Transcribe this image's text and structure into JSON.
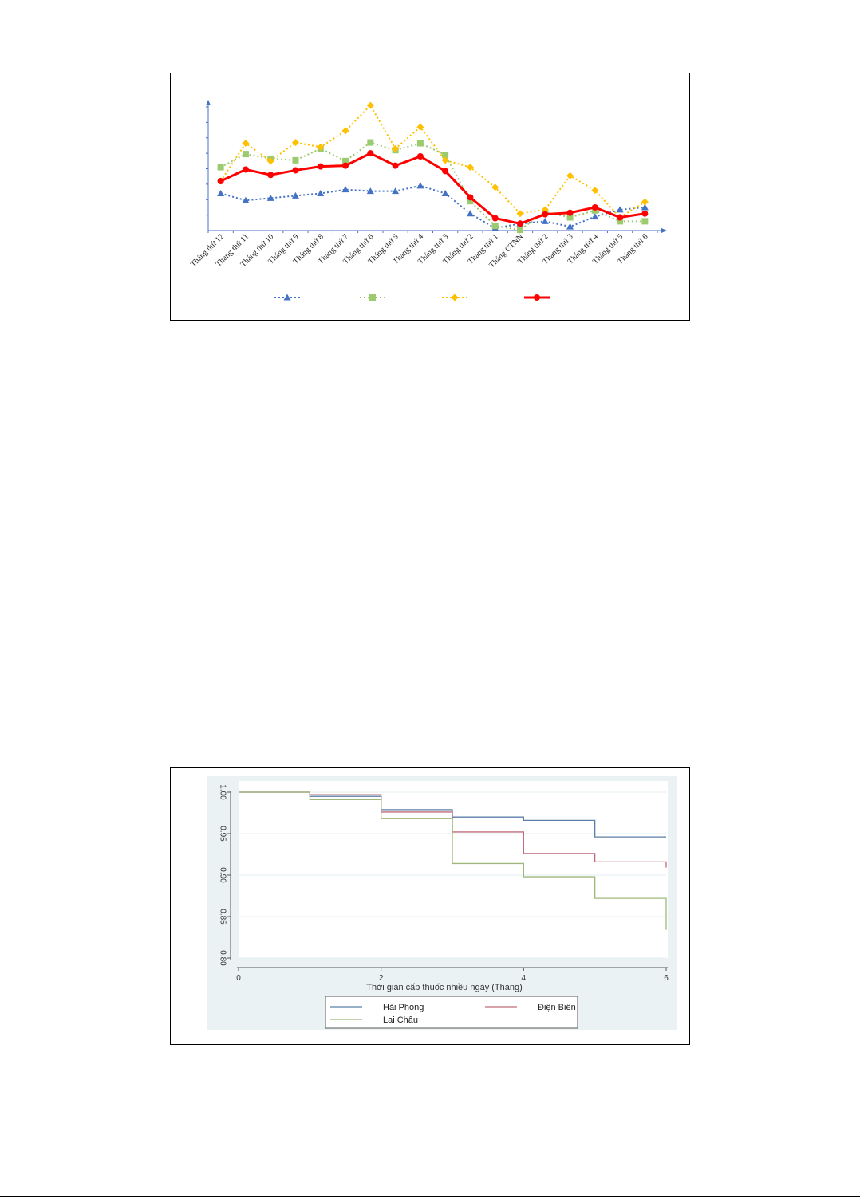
{
  "chart_data": [
    {
      "type": "line",
      "title": "",
      "xlabel": "",
      "ylabel": "",
      "categories": [
        "Tháng thứ 12",
        "Tháng thứ 11",
        "Tháng thứ 10",
        "Tháng thứ 9",
        "Tháng thứ 8",
        "Tháng thứ 7",
        "Tháng thứ 6",
        "Tháng thứ 5",
        "Tháng thứ 4",
        "Tháng thứ 3",
        "Tháng thứ 2",
        "Tháng thứ 1",
        "Tháng CTNN",
        "Tháng thứ 2",
        "Tháng thứ 3",
        "Tháng thứ 4",
        "Tháng thứ 5",
        "Tháng thứ 6"
      ],
      "ylim": [
        0,
        8
      ],
      "grid": false,
      "legend": "bottom",
      "series": [
        {
          "marker": "triangle",
          "style": "dotted",
          "color": "#4472C4",
          "values": [
            2.4,
            1.95,
            2.1,
            2.25,
            2.4,
            2.65,
            2.55,
            2.55,
            2.9,
            2.4,
            1.1,
            0.15,
            0.45,
            0.6,
            0.25,
            0.9,
            1.35,
            1.5
          ]
        },
        {
          "marker": "square",
          "style": "dotted",
          "color": "#9BCB6E",
          "values": [
            4.1,
            4.95,
            4.65,
            4.55,
            5.3,
            4.5,
            5.7,
            5.2,
            5.65,
            4.9,
            1.9,
            0.3,
            0.05,
            1.2,
            0.85,
            1.3,
            0.6,
            0.6
          ]
        },
        {
          "marker": "diamond",
          "style": "dotted",
          "color": "#FFC000",
          "values": [
            3.2,
            5.65,
            4.5,
            5.7,
            5.4,
            6.45,
            8.1,
            5.3,
            6.7,
            4.55,
            4.1,
            2.8,
            1.1,
            1.35,
            3.55,
            2.6,
            0.85,
            1.85
          ]
        },
        {
          "marker": "circle",
          "style": "solid",
          "color": "#FF0000",
          "values": [
            3.2,
            3.95,
            3.6,
            3.9,
            4.15,
            4.2,
            5.0,
            4.2,
            4.8,
            3.85,
            2.15,
            0.8,
            0.45,
            1.05,
            1.15,
            1.5,
            0.85,
            1.1
          ]
        }
      ]
    },
    {
      "type": "line",
      "title": "",
      "xlabel": "Thời gian cấp thuốc nhiều ngày (Tháng)",
      "ylabel": "",
      "xlim": [
        0,
        6
      ],
      "ylim": [
        0.8,
        1.0
      ],
      "xticks": [
        "0",
        "2",
        "4",
        "6"
      ],
      "yticks": [
        "0.80",
        "0.85",
        "0.90",
        "0.95",
        "1.00"
      ],
      "grid": true,
      "legend": "bottom",
      "series": [
        {
          "name": "Hải Phòng",
          "color": "#5B7FA6",
          "steps": [
            [
              0,
              1.0
            ],
            [
              1,
              0.995
            ],
            [
              2,
              0.979
            ],
            [
              3,
              0.97
            ],
            [
              4,
              0.966
            ],
            [
              5,
              0.946
            ],
            [
              6,
              0.946
            ]
          ]
        },
        {
          "name": "Điện Biên",
          "color": "#C06A78",
          "steps": [
            [
              0,
              1.0
            ],
            [
              1,
              0.997
            ],
            [
              2,
              0.976
            ],
            [
              3,
              0.952
            ],
            [
              4,
              0.926
            ],
            [
              5,
              0.916
            ],
            [
              6,
              0.909
            ]
          ]
        },
        {
          "name": "Lai Châu",
          "color": "#9DB87A",
          "steps": [
            [
              0,
              1.0
            ],
            [
              1,
              0.991
            ],
            [
              2,
              0.968
            ],
            [
              3,
              0.914
            ],
            [
              4,
              0.898
            ],
            [
              5,
              0.872
            ],
            [
              6,
              0.834
            ]
          ]
        }
      ]
    }
  ]
}
